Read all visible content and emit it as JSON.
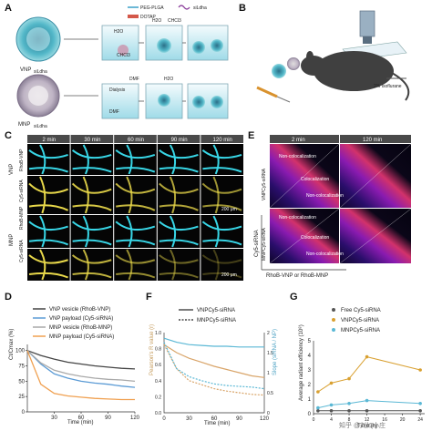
{
  "panel_letters": [
    "A",
    "B",
    "C",
    "D",
    "E",
    "F",
    "G"
  ],
  "panelA": {
    "vnp_label": "VNP",
    "vnp_sub": "siLdha",
    "mnp_label": "MNP",
    "mnp_sub": "siLdha",
    "legend": [
      "PEG-PLGA",
      "DOTAP",
      "siLdha"
    ],
    "step_texts": [
      "H2O",
      "H2O",
      "CHCl3",
      "CHCl3",
      "Dialysis",
      "DMF",
      "DMF",
      "H2O"
    ]
  },
  "panelB": {
    "isoflurane": "2% Isoflurane"
  },
  "panelC": {
    "time_labels": [
      "2 min",
      "30 min",
      "60 min",
      "90 min",
      "120 min"
    ],
    "row_labels": [
      "RhoB-VNP",
      "Cy5-siRNA",
      "RhoB-MNP",
      "Cy5-siRNA"
    ],
    "group_labels": [
      "VNP",
      "MNP"
    ],
    "scale_bars": [
      "200 μm",
      "200 μm"
    ]
  },
  "panelD": {
    "ylabel": "Ct/Cmax (%)",
    "xlabel": "Time (min)",
    "legend": [
      "VNP vesicle (RhoB-VNP)",
      "VNP payload (Cy5-siRNA)",
      "MNP vesicle (RhoB-MNP)",
      "MNP payload (Cy5-siRNA)"
    ]
  },
  "panelE": {
    "time_labels": [
      "2 min",
      "120 min"
    ],
    "row_labels": [
      "VNPCy5-siRNA",
      "MNPCy5-siRNA"
    ],
    "quad_labels": [
      "Non-colocalization",
      "Colocalization",
      "Non-colocalization",
      "Non-colocalization",
      "Colocalization",
      "Non-colocalization"
    ],
    "yaxis": "Cy5-siRNA",
    "xaxis": "RhoB-VNP or RhoB-MNP"
  },
  "panelF": {
    "legend": [
      "VNPCy5-siRNA",
      "MNPCy5-siRNA"
    ],
    "ylabel_left": "Pearson's R value (r)",
    "ylabel_right": "Slope (siRNA / NP)",
    "xlabel": "Time (min)"
  },
  "panelG": {
    "legend": [
      "Free Cy5-siRNA",
      "VNPCy5-siRNA",
      "MNPCy5-siRNA"
    ],
    "ylabel": "Average radiant efficiency (10⁸)",
    "xlabel": "Time (h)"
  },
  "watermark": "知乎 @刘如小庄",
  "colors": {
    "vnp": "#5b9bd5",
    "mnp": "#f0a050",
    "red_brown": "#c05a2a",
    "cyan_img": "#38d6e6",
    "yellow_img": "#e8d84a"
  },
  "chart_data": [
    {
      "type": "line",
      "panel": "D",
      "ylabel": "Ct/Cmax (%)",
      "xlabel": "Time (min)",
      "x": [
        0,
        15,
        30,
        45,
        60,
        75,
        90,
        105,
        120
      ],
      "xticks": [
        30,
        60,
        90,
        120
      ],
      "yticks": [
        0,
        25,
        50,
        75,
        100
      ],
      "xlim": [
        0,
        120
      ],
      "ylim": [
        0,
        110
      ],
      "series": [
        {
          "name": "VNP vesicle (RhoB-VNP)",
          "color": "#444444",
          "values": [
            100,
            92,
            86,
            81,
            78,
            75,
            73,
            71,
            70
          ]
        },
        {
          "name": "VNP payload (Cy5-siRNA)",
          "color": "#5b9bd5",
          "values": [
            100,
            78,
            62,
            55,
            50,
            47,
            45,
            42,
            40
          ]
        },
        {
          "name": "MNP vesicle (RhoB-MNP)",
          "color": "#a9a9a9",
          "values": [
            100,
            80,
            68,
            62,
            58,
            55,
            53,
            52,
            50
          ]
        },
        {
          "name": "MNP payload (Cy5-siRNA)",
          "color": "#f0a050",
          "values": [
            100,
            45,
            30,
            26,
            24,
            22,
            21,
            20,
            20
          ]
        }
      ]
    },
    {
      "type": "line",
      "panel": "F",
      "ylabel": "Pearson's R value (r)",
      "y2label": "Slope (siRNA / NP)",
      "xlabel": "Time (min)",
      "x": [
        0,
        15,
        30,
        45,
        60,
        75,
        90,
        105,
        120
      ],
      "xticks": [
        0,
        30,
        60,
        90,
        120
      ],
      "yticks": [
        0.0,
        0.2,
        0.4,
        0.6,
        0.8,
        1.0
      ],
      "y2ticks": [
        0,
        0.5,
        1.0,
        1.5,
        2.0
      ],
      "series": [
        {
          "name": "VNPCy5-siRNA r",
          "color": "#d9a56a",
          "values": [
            0.85,
            0.75,
            0.68,
            0.63,
            0.58,
            0.54,
            0.5,
            0.46,
            0.44
          ]
        },
        {
          "name": "MNPCy5-siRNA r",
          "color": "#d9a56a",
          "values": [
            0.85,
            0.55,
            0.4,
            0.35,
            0.3,
            0.27,
            0.25,
            0.23,
            0.22
          ]
        },
        {
          "name": "VNPCy5-siRNA slope",
          "color": "#5bb8d5",
          "values": [
            0.93,
            0.88,
            0.85,
            0.84,
            0.83,
            0.83,
            0.82,
            0.82,
            0.82
          ]
        },
        {
          "name": "MNPCy5-siRNA slope",
          "color": "#5bb8d5",
          "values": [
            0.88,
            0.55,
            0.45,
            0.4,
            0.36,
            0.34,
            0.33,
            0.32,
            0.3
          ]
        }
      ]
    },
    {
      "type": "line",
      "panel": "G",
      "ylabel": "Average radiant efficiency (10⁸)",
      "xlabel": "Time (h)",
      "x": [
        1,
        4,
        8,
        12,
        24
      ],
      "xticks": [
        0,
        4,
        8,
        12,
        16,
        20,
        24
      ],
      "yticks": [
        0,
        1,
        2,
        3,
        4,
        5
      ],
      "xlim": [
        0,
        25
      ],
      "ylim": [
        0,
        5
      ],
      "series": [
        {
          "name": "Free Cy5-siRNA",
          "color": "#555555",
          "values": [
            0.2,
            0.2,
            0.2,
            0.2,
            0.2
          ]
        },
        {
          "name": "VNPCy5-siRNA",
          "color": "#d9a030",
          "values": [
            1.5,
            2.1,
            2.4,
            3.9,
            3.0
          ]
        },
        {
          "name": "MNPCy5-siRNA",
          "color": "#5bb8d5",
          "values": [
            0.4,
            0.6,
            0.7,
            0.9,
            0.7
          ]
        }
      ]
    }
  ]
}
